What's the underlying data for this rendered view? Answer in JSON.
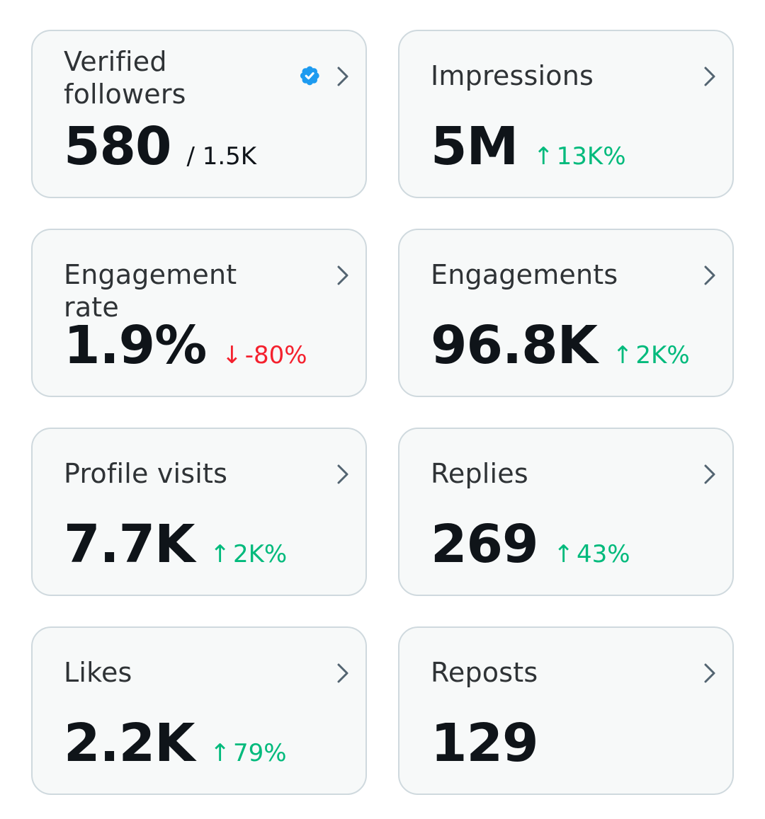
{
  "colors": {
    "card_background": "#f7f9f9",
    "card_border": "#cfd9de",
    "positive": "#00ba7c",
    "negative": "#f4212e",
    "verified_badge": "#1d9bf0",
    "chevron": "#536471"
  },
  "cards": [
    {
      "title": "Verified followers",
      "value": "580",
      "sub_value": "/ 1.5K",
      "icon": "verified-badge-icon"
    },
    {
      "title": "Impressions",
      "value": "5M",
      "delta": {
        "direction": "up",
        "arrow": "↑",
        "text": "13K%"
      }
    },
    {
      "title": "Engagement rate",
      "value": "1.9%",
      "delta": {
        "direction": "down",
        "arrow": "↓",
        "text": "-80%"
      }
    },
    {
      "title": "Engagements",
      "value": "96.8K",
      "delta": {
        "direction": "up",
        "arrow": "↑",
        "text": "2K%"
      }
    },
    {
      "title": "Profile visits",
      "value": "7.7K",
      "delta": {
        "direction": "up",
        "arrow": "↑",
        "text": "2K%"
      }
    },
    {
      "title": "Replies",
      "value": "269",
      "delta": {
        "direction": "up",
        "arrow": "↑",
        "text": "43%"
      }
    },
    {
      "title": "Likes",
      "value": "2.2K",
      "delta": {
        "direction": "up",
        "arrow": "↑",
        "text": "79%"
      }
    },
    {
      "title": "Reposts",
      "value": "129"
    }
  ]
}
